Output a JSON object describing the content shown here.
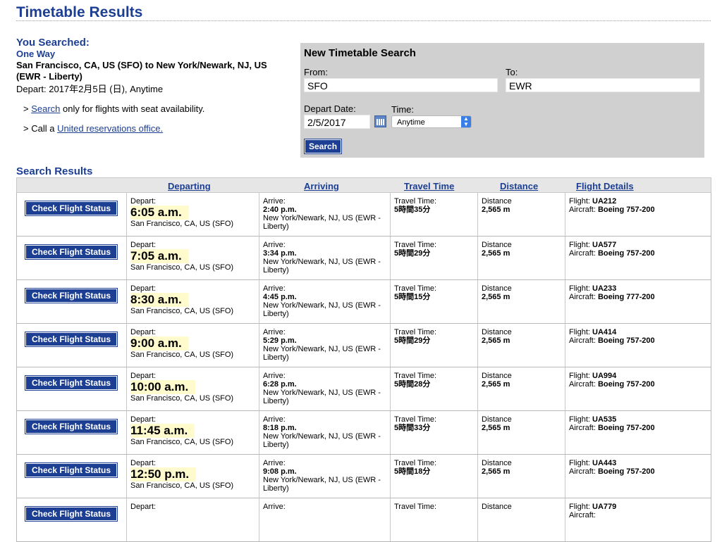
{
  "page_title": "Timetable Results",
  "you_searched": {
    "heading": "You Searched:",
    "trip_type": "One Way",
    "route": "San Francisco, CA, US (SFO) to New York/Newark, NJ, US (EWR - Liberty)",
    "depart": "Depart: 2017年2月5日 (日), Anytime",
    "note1": {
      "prefix": "> ",
      "link": "Search",
      "suffix": " only for flights with seat availability."
    },
    "note2": {
      "prefix": "> Call a ",
      "link": "United reservations office."
    }
  },
  "new_search": {
    "title": "New Timetable Search",
    "from_label": "From:",
    "from_value": "SFO",
    "to_label": "To:",
    "to_value": "EWR",
    "date_label": "Depart Date:",
    "date_value": "2/5/2017",
    "time_label": "Time:",
    "time_value": "Anytime",
    "search_button": "Search"
  },
  "results": {
    "title": "Search Results",
    "headers": [
      "Departing",
      "Arriving",
      "Travel Time",
      "Distance",
      "Flight Details"
    ],
    "button_label": "Check Flight Status",
    "depart_label": "Depart:",
    "arrive_label": "Arrive:",
    "travel_label": "Travel Time:",
    "distance_label": "Distance",
    "flight_label": "Flight: ",
    "aircraft_label": "Aircraft: ",
    "rows": [
      {
        "dep_time": "6:05 a.m.",
        "dep_city": "San Francisco, CA, US (SFO)",
        "arr_time": "2:40 p.m.",
        "arr_city": "New York/Newark, NJ, US (EWR - Liberty)",
        "travel": "5時間35分",
        "distance": "2,565 m",
        "flight": "UA212",
        "aircraft": "Boeing 757-200"
      },
      {
        "dep_time": "7:05 a.m.",
        "dep_city": "San Francisco, CA, US (SFO)",
        "arr_time": "3:34 p.m.",
        "arr_city": "New York/Newark, NJ, US (EWR - Liberty)",
        "travel": "5時間29分",
        "distance": "2,565 m",
        "flight": "UA577",
        "aircraft": "Boeing 757-200"
      },
      {
        "dep_time": "8:30 a.m.",
        "dep_city": "San Francisco, CA, US (SFO)",
        "arr_time": "4:45 p.m.",
        "arr_city": "New York/Newark, NJ, US (EWR - Liberty)",
        "travel": "5時間15分",
        "distance": "2,565 m",
        "flight": "UA233",
        "aircraft": "Boeing 777-200"
      },
      {
        "dep_time": "9:00 a.m.",
        "dep_city": "San Francisco, CA, US (SFO)",
        "arr_time": "5:29 p.m.",
        "arr_city": "New York/Newark, NJ, US (EWR - Liberty)",
        "travel": "5時間29分",
        "distance": "2,565 m",
        "flight": "UA414",
        "aircraft": "Boeing 757-200"
      },
      {
        "dep_time": "10:00 a.m.",
        "dep_city": "San Francisco, CA, US (SFO)",
        "arr_time": "6:28 p.m.",
        "arr_city": "New York/Newark, NJ, US (EWR - Liberty)",
        "travel": "5時間28分",
        "distance": "2,565 m",
        "flight": "UA994",
        "aircraft": "Boeing 757-200"
      },
      {
        "dep_time": "11:45 a.m.",
        "dep_city": "San Francisco, CA, US (SFO)",
        "arr_time": "8:18 p.m.",
        "arr_city": "New York/Newark, NJ, US (EWR - Liberty)",
        "travel": "5時間33分",
        "distance": "2,565 m",
        "flight": "UA535",
        "aircraft": "Boeing 757-200"
      },
      {
        "dep_time": "12:50 p.m.",
        "dep_city": "San Francisco, CA, US (SFO)",
        "arr_time": "9:08 p.m.",
        "arr_city": "New York/Newark, NJ, US (EWR - Liberty)",
        "travel": "5時間18分",
        "distance": "2,565 m",
        "flight": "UA443",
        "aircraft": "Boeing 757-200"
      },
      {
        "dep_time": "",
        "dep_city": "",
        "arr_time": "",
        "arr_city": "",
        "travel": "",
        "distance": "",
        "flight": "UA779",
        "aircraft": ""
      }
    ]
  }
}
